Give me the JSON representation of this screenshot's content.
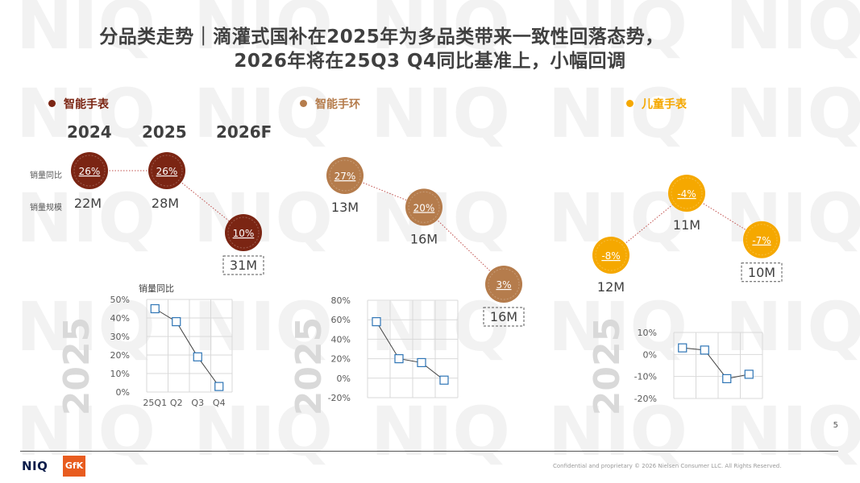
{
  "header": {
    "title_line1": "分品类走势｜滴灌式国补在2025年为多品类带来一致性回落态势，",
    "title_line2": "2026年将在25Q3 Q4同比基准上，小幅回调"
  },
  "year_headers": [
    "2024",
    "2025",
    "2026F"
  ],
  "row_labels": {
    "yoy": "销量同比",
    "volume": "销量规模"
  },
  "colors": {
    "smart_watch": "#7b2513",
    "smart_band": "#b57c4c",
    "kids_watch": "#f5a800",
    "connector": "#c0504d",
    "mini_line": "#404040",
    "mini_marker": "#2e75b6",
    "watermark": "#f2f2f2",
    "year_watermark": "#d9d9d9"
  },
  "chart_data": [
    {
      "type": "scatter",
      "name": "智能手表",
      "color": "#7b2513",
      "x": [
        "2024",
        "2025",
        "2026F"
      ],
      "yoy": [
        "26%",
        "26%",
        "10%"
      ],
      "yoy_values": [
        26,
        26,
        10
      ],
      "volume": [
        "22M",
        "28M",
        "31M"
      ],
      "forecast_boxed": [
        false,
        false,
        true
      ]
    },
    {
      "type": "scatter",
      "name": "智能手环",
      "color": "#b57c4c",
      "x": [
        "2024",
        "2025",
        "2026F"
      ],
      "yoy": [
        "27%",
        "20%",
        "3%"
      ],
      "yoy_values": [
        27,
        20,
        3
      ],
      "volume": [
        "13M",
        "16M",
        "16M"
      ],
      "forecast_boxed": [
        false,
        false,
        true
      ]
    },
    {
      "type": "scatter",
      "name": "儿童手表",
      "color": "#f5a800",
      "x": [
        "2024",
        "2025",
        "2026F"
      ],
      "yoy": [
        "-8%",
        "-4%",
        "-7%"
      ],
      "yoy_values": [
        -8,
        -4,
        -7
      ],
      "volume": [
        "12M",
        "11M",
        "10M"
      ],
      "forecast_boxed": [
        false,
        false,
        true
      ]
    },
    {
      "type": "line",
      "title": "销量同比",
      "year_label": "2025",
      "categories": [
        "25Q1",
        "Q2",
        "Q3",
        "Q4"
      ],
      "values": [
        45,
        38,
        19,
        3
      ],
      "yticks": [
        "50%",
        "40%",
        "30%",
        "20%",
        "10%",
        "0%"
      ],
      "ylim": [
        0,
        50
      ],
      "grid": true
    },
    {
      "type": "line",
      "year_label": "2025",
      "categories": [
        "",
        "",
        "",
        ""
      ],
      "values": [
        58,
        20,
        16,
        -2
      ],
      "yticks": [
        "80%",
        "60%",
        "40%",
        "20%",
        "0%",
        "-20%"
      ],
      "ylim": [
        -20,
        80
      ],
      "grid": true
    },
    {
      "type": "line",
      "year_label": "2025",
      "categories": [
        "",
        "",
        "",
        ""
      ],
      "values": [
        3,
        2,
        -11,
        -9
      ],
      "yticks": [
        "10%",
        "0%",
        "-10%",
        "-20%"
      ],
      "ylim": [
        -20,
        10
      ],
      "grid": true
    }
  ],
  "footer": {
    "page_number": "5",
    "confidential": "Confidential and proprietary     © 2026 Nielsen Consumer LLC. All Rights Reserved.",
    "logo_text": "NIQ",
    "logo_gfk": "GfK"
  }
}
